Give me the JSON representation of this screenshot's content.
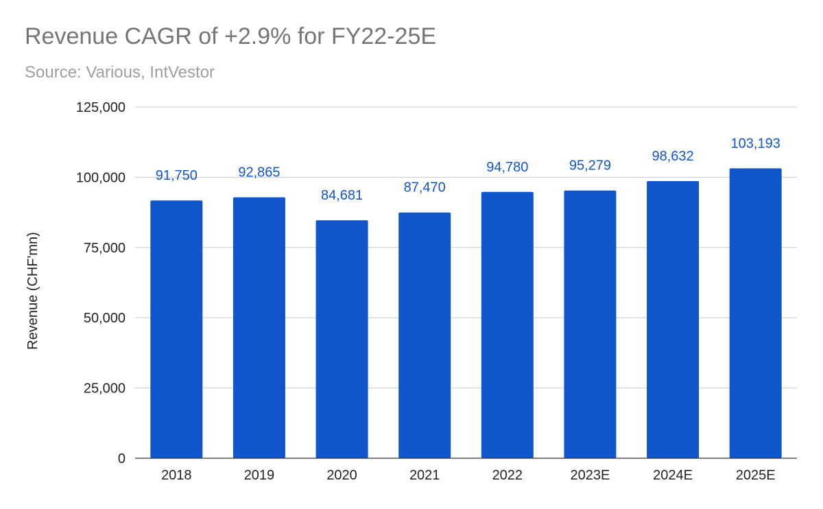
{
  "chart_data": {
    "type": "bar",
    "title": "Revenue CAGR of +2.9% for FY22-25E",
    "subtitle": "Source: Various, IntVestor",
    "xlabel": "",
    "ylabel": "Revenue (CHF'mn)",
    "categories": [
      "2018",
      "2019",
      "2020",
      "2021",
      "2022",
      "2023E",
      "2024E",
      "2025E"
    ],
    "values": [
      91750,
      92865,
      84681,
      87470,
      94780,
      95279,
      98632,
      103193
    ],
    "data_labels": [
      "91,750",
      "92,865",
      "84,681",
      "87,470",
      "94,780",
      "95,279",
      "98,632",
      "103,193"
    ],
    "ylim": [
      0,
      125000
    ],
    "yticks": [
      0,
      25000,
      50000,
      75000,
      100000,
      125000
    ],
    "ytick_labels": [
      "0",
      "25,000",
      "50,000",
      "75,000",
      "100,000",
      "125,000"
    ],
    "grid": true,
    "legend": "none",
    "bar_color": "#1155cc",
    "label_color": "#1155cc"
  }
}
